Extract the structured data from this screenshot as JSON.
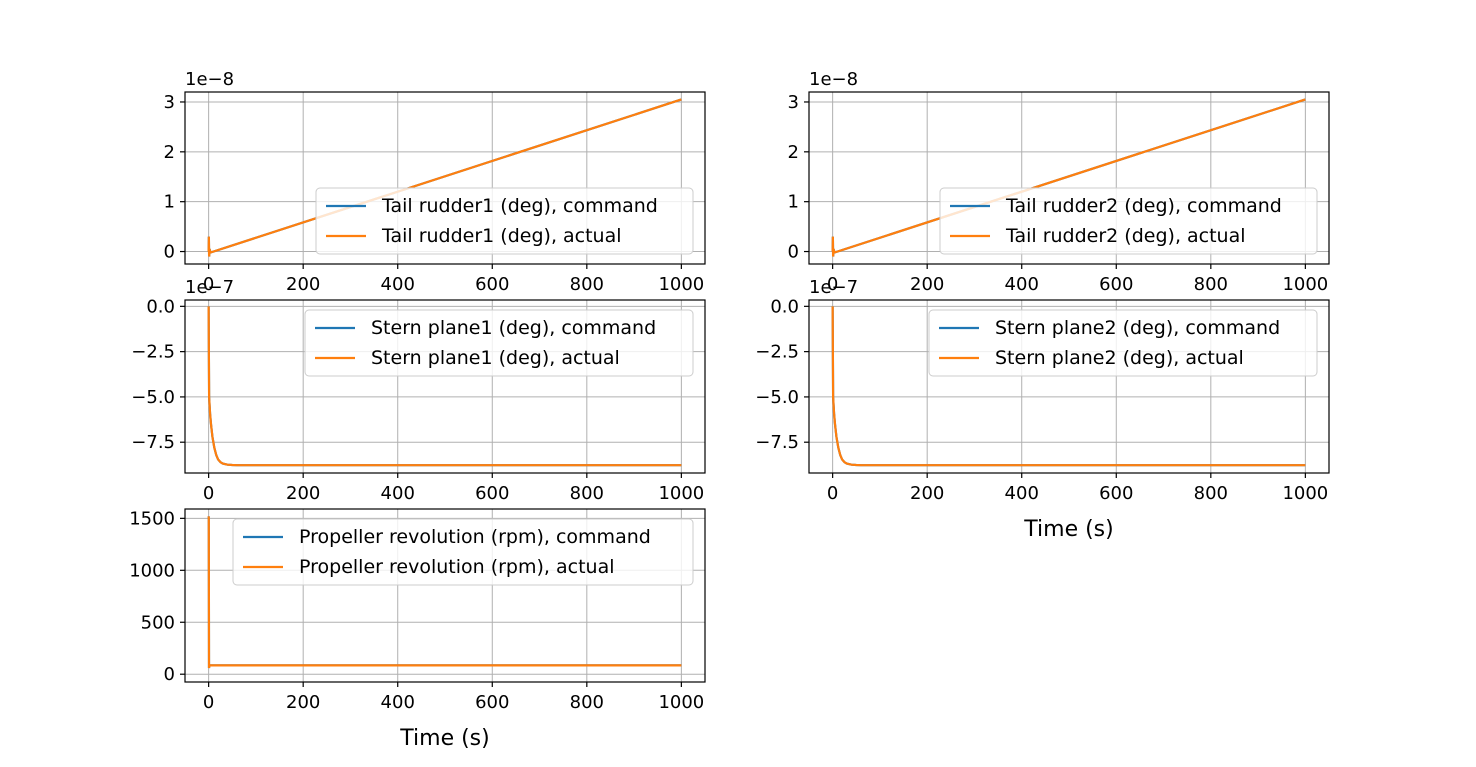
{
  "chart_data": [
    {
      "type": "line",
      "xlim": [
        -50,
        1050
      ],
      "ylim": [
        -0.25,
        3.2
      ],
      "y_multiplier_label": "1e−8",
      "grid": true,
      "legend_position": "lower right",
      "xticks": [
        0,
        200,
        400,
        600,
        800,
        1000
      ],
      "xtick_labels": [
        "0",
        "200",
        "400",
        "600",
        "800",
        "1000"
      ],
      "yticks": [
        0,
        1,
        2,
        3
      ],
      "ytick_labels": [
        "0",
        "1",
        "2",
        "3"
      ],
      "xlabel": "",
      "series": [
        {
          "name": "Tail rudder1 (deg), command",
          "color": "#1f77b4",
          "x": [
            0,
            0.5,
            1,
            2,
            4,
            1000
          ],
          "y": [
            0,
            0.3,
            -0.1,
            0.05,
            -0.02,
            3.05
          ]
        },
        {
          "name": "Tail rudder1 (deg), actual",
          "color": "#ff7f0e",
          "x": [
            0,
            0.5,
            1,
            2,
            4,
            1000
          ],
          "y": [
            0,
            0.3,
            -0.1,
            0.05,
            -0.02,
            3.05
          ]
        }
      ]
    },
    {
      "type": "line",
      "xlim": [
        -50,
        1050
      ],
      "ylim": [
        -0.25,
        3.2
      ],
      "y_multiplier_label": "1e−8",
      "grid": true,
      "legend_position": "lower right",
      "xticks": [
        0,
        200,
        400,
        600,
        800,
        1000
      ],
      "xtick_labels": [
        "0",
        "200",
        "400",
        "600",
        "800",
        "1000"
      ],
      "yticks": [
        0,
        1,
        2,
        3
      ],
      "ytick_labels": [
        "0",
        "1",
        "2",
        "3"
      ],
      "xlabel": "",
      "series": [
        {
          "name": "Tail rudder2 (deg), command",
          "color": "#1f77b4",
          "x": [
            0,
            0.5,
            1,
            2,
            4,
            1000
          ],
          "y": [
            0,
            0.3,
            -0.1,
            0.05,
            -0.02,
            3.05
          ]
        },
        {
          "name": "Tail rudder2 (deg), actual",
          "color": "#ff7f0e",
          "x": [
            0,
            0.5,
            1,
            2,
            4,
            1000
          ],
          "y": [
            0,
            0.3,
            -0.1,
            0.05,
            -0.02,
            3.05
          ]
        }
      ]
    },
    {
      "type": "line",
      "xlim": [
        -50,
        1050
      ],
      "ylim": [
        -9.2,
        0.35
      ],
      "y_multiplier_label": "1e−7",
      "grid": true,
      "legend_position": "upper right",
      "xticks": [
        0,
        200,
        400,
        600,
        800,
        1000
      ],
      "xtick_labels": [
        "0",
        "200",
        "400",
        "600",
        "800",
        "1000"
      ],
      "yticks": [
        0,
        -2.5,
        -5,
        -7.5
      ],
      "ytick_labels": [
        "0.0",
        "−2.5",
        "−5.0",
        "−7.5"
      ],
      "xlabel": "",
      "series": [
        {
          "name": "Stern plane1 (deg), command",
          "color": "#1f77b4",
          "x": [
            0,
            1,
            3,
            5,
            8,
            12,
            16,
            20,
            25,
            30,
            40,
            50,
            60,
            80,
            1000
          ],
          "y": [
            0,
            -5.0,
            -5.9,
            -6.5,
            -7.2,
            -7.8,
            -8.2,
            -8.45,
            -8.6,
            -8.68,
            -8.74,
            -8.76,
            -8.77,
            -8.77,
            -8.77
          ]
        },
        {
          "name": "Stern plane1 (deg), actual",
          "color": "#ff7f0e",
          "x": [
            0,
            1,
            3,
            5,
            8,
            12,
            16,
            20,
            25,
            30,
            40,
            50,
            60,
            80,
            1000
          ],
          "y": [
            0,
            -5.0,
            -5.9,
            -6.5,
            -7.2,
            -7.8,
            -8.2,
            -8.45,
            -8.6,
            -8.68,
            -8.74,
            -8.76,
            -8.77,
            -8.77,
            -8.77
          ]
        }
      ]
    },
    {
      "type": "line",
      "xlim": [
        -50,
        1050
      ],
      "ylim": [
        -9.2,
        0.35
      ],
      "y_multiplier_label": "1e−7",
      "grid": true,
      "legend_position": "upper right",
      "xticks": [
        0,
        200,
        400,
        600,
        800,
        1000
      ],
      "xtick_labels": [
        "0",
        "200",
        "400",
        "600",
        "800",
        "1000"
      ],
      "yticks": [
        0,
        -2.5,
        -5,
        -7.5
      ],
      "ytick_labels": [
        "0.0",
        "−2.5",
        "−5.0",
        "−7.5"
      ],
      "xlabel": "Time (s)",
      "series": [
        {
          "name": "Stern plane2 (deg), command",
          "color": "#1f77b4",
          "x": [
            0,
            1,
            3,
            5,
            8,
            12,
            16,
            20,
            25,
            30,
            40,
            50,
            60,
            80,
            1000
          ],
          "y": [
            0,
            -5.0,
            -5.9,
            -6.5,
            -7.2,
            -7.8,
            -8.2,
            -8.45,
            -8.6,
            -8.68,
            -8.74,
            -8.76,
            -8.77,
            -8.77,
            -8.77
          ]
        },
        {
          "name": "Stern plane2 (deg), actual",
          "color": "#ff7f0e",
          "x": [
            0,
            1,
            3,
            5,
            8,
            12,
            16,
            20,
            25,
            30,
            40,
            50,
            60,
            80,
            1000
          ],
          "y": [
            0,
            -5.0,
            -5.9,
            -6.5,
            -7.2,
            -7.8,
            -8.2,
            -8.45,
            -8.6,
            -8.68,
            -8.74,
            -8.76,
            -8.77,
            -8.77,
            -8.77
          ]
        }
      ]
    },
    {
      "type": "line",
      "xlim": [
        -50,
        1050
      ],
      "ylim": [
        -75,
        1590
      ],
      "y_multiplier_label": "",
      "grid": true,
      "legend_position": "upper right",
      "xticks": [
        0,
        200,
        400,
        600,
        800,
        1000
      ],
      "xtick_labels": [
        "0",
        "200",
        "400",
        "600",
        "800",
        "1000"
      ],
      "yticks": [
        0,
        500,
        1000,
        1500
      ],
      "ytick_labels": [
        "0",
        "500",
        "1000",
        "1500"
      ],
      "xlabel": "Time (s)",
      "series": [
        {
          "name": "Propeller revolution (rpm), command",
          "color": "#1f77b4",
          "x": [
            0,
            0.3,
            0.8,
            1.5,
            1000
          ],
          "y": [
            1520,
            1500,
            60,
            85,
            85
          ]
        },
        {
          "name": "Propeller revolution (rpm), actual",
          "color": "#ff7f0e",
          "x": [
            0,
            0.3,
            0.8,
            1.5,
            1000
          ],
          "y": [
            1520,
            1500,
            60,
            85,
            85
          ]
        }
      ]
    }
  ]
}
